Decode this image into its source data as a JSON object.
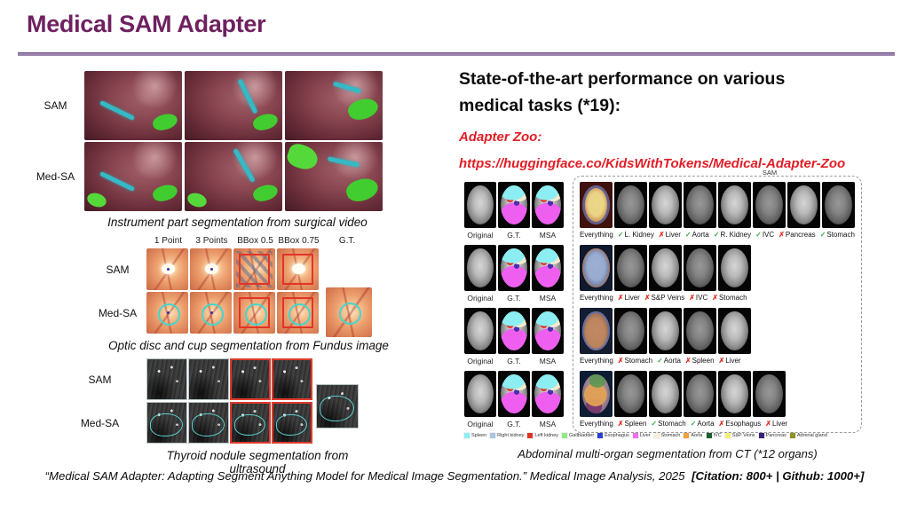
{
  "slide": {
    "title": "Medical SAM Adapter",
    "footer": {
      "citation": "“Medical SAM Adapter: Adapting Segment Anything Model for Medical Image Segmentation.” Medical Image Analysis, 2025",
      "badges": "[Citation: 800+ | Github: 1000+]"
    }
  },
  "left": {
    "surgical": {
      "rows": [
        {
          "label": "SAM"
        },
        {
          "label": "Med-SA"
        }
      ],
      "caption": "Instrument part segmentation from surgical video"
    },
    "fundus": {
      "col_headers": [
        "1 Point",
        "3 Points",
        "BBox 0.5",
        "BBox 0.75",
        "G.T."
      ],
      "rows": [
        {
          "label": "SAM"
        },
        {
          "label": "Med-SA"
        }
      ],
      "caption": "Optic disc and cup segmentation from Fundus image"
    },
    "ultrasound": {
      "rows": [
        {
          "label": "SAM"
        },
        {
          "label": "Med-SA"
        }
      ],
      "caption": "Thyroid nodule segmentation from ultrasound"
    }
  },
  "right": {
    "heading": "State-of-the-art performance on various medical tasks (*19):",
    "adapter_zoo_label": "Adapter Zoo:",
    "adapter_zoo_url": "https://huggingface.co/KidsWithTokens/Medical-Adapter-Zoo",
    "ct": {
      "sam_group_label": "SAM",
      "left_labels": [
        "Original",
        "G.T.",
        "MSA"
      ],
      "rows": [
        {
          "sam_items": [
            {
              "label": "Everything",
              "mark": null
            },
            {
              "label": "L. Kidney",
              "mark": "check"
            },
            {
              "label": "Liver",
              "mark": "cross"
            },
            {
              "label": "Aorta",
              "mark": "check"
            },
            {
              "label": "R. Kidney",
              "mark": "check"
            },
            {
              "label": "IVC",
              "mark": "check"
            },
            {
              "label": "Pancreas",
              "mark": "cross"
            },
            {
              "label": "Stomach",
              "mark": "check"
            }
          ]
        },
        {
          "sam_items": [
            {
              "label": "Everything",
              "mark": null
            },
            {
              "label": "Liver",
              "mark": "cross"
            },
            {
              "label": "S&P Veins",
              "mark": "cross"
            },
            {
              "label": "IVC",
              "mark": "cross"
            },
            {
              "label": "Stomach",
              "mark": "cross"
            }
          ]
        },
        {
          "sam_items": [
            {
              "label": "Everything",
              "mark": null
            },
            {
              "label": "Stomach",
              "mark": "cross"
            },
            {
              "label": "Aorta",
              "mark": "check"
            },
            {
              "label": "Spleen",
              "mark": "cross"
            },
            {
              "label": "Liver",
              "mark": "cross"
            }
          ]
        },
        {
          "sam_items": [
            {
              "label": "Everything",
              "mark": null
            },
            {
              "label": "Spleen",
              "mark": "cross"
            },
            {
              "label": "Stomach",
              "mark": "check"
            },
            {
              "label": "Aorta",
              "mark": "check"
            },
            {
              "label": "Esophagus",
              "mark": "cross"
            },
            {
              "label": "Liver",
              "mark": "cross"
            }
          ]
        }
      ],
      "legend": [
        {
          "label": "Spleen",
          "color": "#8ceef2"
        },
        {
          "label": "Right kidney",
          "color": "#aac6e2"
        },
        {
          "label": "Left kidney",
          "color": "#e03224"
        },
        {
          "label": "Gallbladder",
          "color": "#94e887"
        },
        {
          "label": "Esophagus",
          "color": "#2b3fd0"
        },
        {
          "label": "Liver",
          "color": "#ee6ff0"
        },
        {
          "label": "Stomach",
          "color": "#f7efd8"
        },
        {
          "label": "Aorta",
          "color": "#f0a23c"
        },
        {
          "label": "IVC",
          "color": "#1e5e2e"
        },
        {
          "label": "S&P Veins",
          "color": "#f2ef79"
        },
        {
          "label": "Pancreas",
          "color": "#3a2178"
        },
        {
          "label": "Adrenal gland",
          "color": "#8f9222"
        }
      ],
      "caption": "Abdominal multi-organ segmentation from CT (*12 organs)"
    }
  },
  "colors": {
    "title": "#6e2160",
    "accent_red": "#e11d26",
    "check": "#3cae49",
    "cross": "#e02b22"
  }
}
